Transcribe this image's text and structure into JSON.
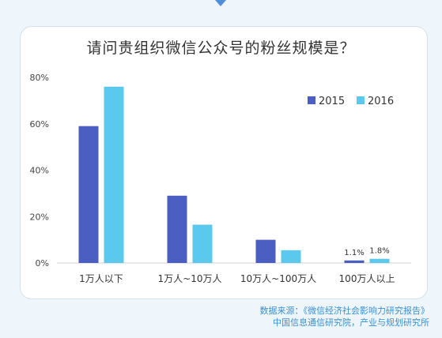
{
  "chart_data": {
    "type": "bar",
    "title": "请问贵组织微信公众号的粉丝规模是？",
    "categories": [
      "1万人以下",
      "1万人~10万人",
      "10万人~100万人",
      "100万人以上"
    ],
    "series": [
      {
        "name": "2015",
        "color": "#4a5fc1",
        "values": [
          59,
          29,
          10,
          1.1
        ]
      },
      {
        "name": "2016",
        "color": "#5bc8ee",
        "values": [
          76,
          16.5,
          5.5,
          1.8
        ]
      }
    ],
    "data_labels": {
      "3": [
        "1.1%",
        "1.8%"
      ]
    },
    "y_ticks": [
      "0%",
      "20%",
      "40%",
      "60%",
      "80%"
    ],
    "ylim": [
      0,
      80
    ],
    "legend": "top-right",
    "grid": false
  },
  "source": {
    "line1": "数据来源：《微信经济社会影响力研究报告》",
    "line2": "中国信息通信研究院，产业与规划研究所"
  }
}
